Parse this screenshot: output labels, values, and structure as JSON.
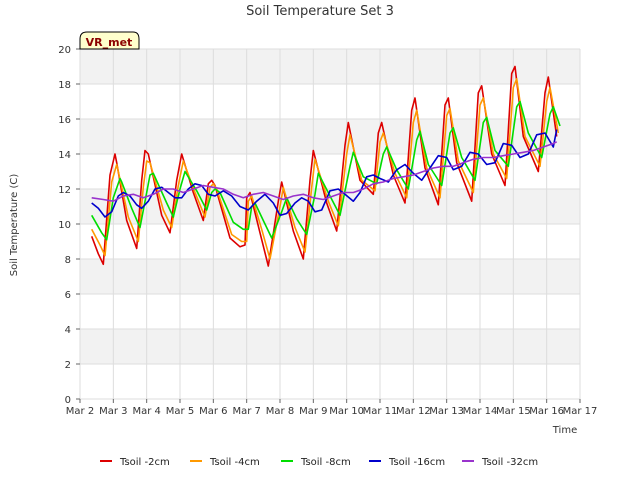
{
  "chart_data": {
    "type": "line",
    "title": "Soil Temperature Set 3",
    "xlabel": "Time",
    "ylabel": "Soil Temperature (C)",
    "badge": "VR_met",
    "xlim": [
      2,
      17
    ],
    "ylim": [
      0,
      20
    ],
    "x_unit": "day of March",
    "xticks": [
      2,
      3,
      4,
      5,
      6,
      7,
      8,
      9,
      10,
      11,
      12,
      13,
      14,
      15,
      16,
      17
    ],
    "xtick_labels": [
      "Mar 2",
      "Mar 3",
      "Mar 4",
      "Mar 5",
      "Mar 6",
      "Mar 7",
      "Mar 8",
      "Mar 9",
      "Mar 10",
      "Mar 11",
      "Mar 12",
      "Mar 13",
      "Mar 14",
      "Mar 15",
      "Mar 16",
      "Mar 17"
    ],
    "yticks": [
      0,
      2,
      4,
      6,
      8,
      10,
      12,
      14,
      16,
      18,
      20
    ],
    "ytick_labels": [
      "0",
      "2",
      "4",
      "6",
      "8",
      "10",
      "12",
      "14",
      "16",
      "18",
      "20"
    ],
    "grid": true,
    "legend_position": "bottom",
    "series": [
      {
        "name": "Tsoil -2cm",
        "color": "#dd0000",
        "x": [
          2.35,
          2.55,
          2.7,
          2.9,
          3.05,
          3.1,
          3.4,
          3.7,
          3.85,
          3.95,
          4.05,
          4.45,
          4.7,
          4.9,
          5.05,
          5.4,
          5.7,
          5.85,
          5.95,
          6.05,
          6.5,
          6.8,
          6.95,
          7.0,
          7.1,
          7.4,
          7.65,
          7.95,
          8.05,
          8.4,
          8.7,
          8.9,
          9.0,
          9.4,
          9.7,
          9.95,
          10.05,
          10.4,
          10.8,
          10.95,
          11.05,
          11.4,
          11.75,
          11.95,
          12.05,
          12.35,
          12.75,
          12.95,
          13.05,
          13.3,
          13.75,
          13.95,
          14.05,
          14.35,
          14.75,
          14.95,
          15.05,
          15.3,
          15.75,
          15.95,
          16.05,
          16.3
        ],
        "y": [
          9.3,
          8.3,
          7.7,
          12.8,
          14.0,
          13.5,
          10.2,
          8.6,
          12.5,
          14.2,
          14.0,
          10.5,
          9.5,
          12.5,
          14.0,
          11.8,
          10.2,
          12.3,
          12.5,
          12.2,
          9.2,
          8.7,
          8.8,
          11.5,
          11.8,
          9.5,
          7.6,
          11.3,
          12.4,
          9.6,
          8.0,
          12.5,
          14.2,
          11.2,
          9.6,
          14.5,
          15.8,
          12.5,
          11.7,
          15.2,
          15.8,
          12.8,
          11.2,
          16.5,
          17.2,
          13.2,
          11.1,
          16.8,
          17.2,
          13.5,
          11.3,
          17.5,
          17.9,
          14.0,
          12.2,
          18.6,
          19.0,
          15.0,
          13.0,
          17.5,
          18.4,
          15.0
        ]
      },
      {
        "name": "Tsoil -4cm",
        "color": "#ff9900",
        "x": [
          2.35,
          2.6,
          2.75,
          2.95,
          3.1,
          3.15,
          3.45,
          3.75,
          3.9,
          4.0,
          4.1,
          4.5,
          4.75,
          4.95,
          5.1,
          5.45,
          5.75,
          5.9,
          6.0,
          6.1,
          6.55,
          6.85,
          7.0,
          7.05,
          7.15,
          7.45,
          7.7,
          8.0,
          8.1,
          8.45,
          8.75,
          8.95,
          9.05,
          9.45,
          9.75,
          10.0,
          10.1,
          10.45,
          10.85,
          11.0,
          11.1,
          11.45,
          11.8,
          12.0,
          12.1,
          12.4,
          12.8,
          13.0,
          13.1,
          13.35,
          13.8,
          14.0,
          14.1,
          14.4,
          14.8,
          15.0,
          15.1,
          15.35,
          15.8,
          16.0,
          16.1,
          16.35
        ],
        "y": [
          9.7,
          8.8,
          8.2,
          12.4,
          13.4,
          13.0,
          10.4,
          9.0,
          12.1,
          13.6,
          13.5,
          10.8,
          9.8,
          12.2,
          13.6,
          11.8,
          10.4,
          12.1,
          12.3,
          12.0,
          9.4,
          9.0,
          9.0,
          11.3,
          11.6,
          9.7,
          8.0,
          11.0,
          12.1,
          9.8,
          8.4,
          12.1,
          13.7,
          11.3,
          9.9,
          14.0,
          15.1,
          12.5,
          11.9,
          14.7,
          15.2,
          12.9,
          11.5,
          15.8,
          16.5,
          13.2,
          11.5,
          16.2,
          16.6,
          13.6,
          11.8,
          16.8,
          17.2,
          14.0,
          12.6,
          17.8,
          18.3,
          15.0,
          13.3,
          17.0,
          17.8,
          15.2
        ]
      },
      {
        "name": "Tsoil -8cm",
        "color": "#00dd00",
        "x": [
          2.35,
          2.65,
          2.8,
          3.0,
          3.2,
          3.25,
          3.55,
          3.8,
          4.0,
          4.1,
          4.2,
          4.6,
          4.8,
          5.0,
          5.15,
          5.5,
          5.8,
          5.95,
          6.05,
          6.2,
          6.6,
          6.9,
          7.05,
          7.15,
          7.25,
          7.5,
          7.75,
          8.05,
          8.2,
          8.5,
          8.8,
          9.05,
          9.15,
          9.5,
          9.8,
          10.1,
          10.2,
          10.5,
          10.9,
          11.1,
          11.2,
          11.5,
          11.85,
          12.1,
          12.2,
          12.45,
          12.85,
          13.1,
          13.2,
          13.45,
          13.85,
          14.1,
          14.2,
          14.45,
          14.85,
          15.1,
          15.2,
          15.45,
          15.85,
          16.1,
          16.2,
          16.4
        ],
        "y": [
          10.5,
          9.5,
          9.1,
          11.5,
          12.6,
          12.4,
          10.9,
          9.8,
          11.8,
          12.8,
          12.9,
          11.2,
          10.4,
          12.0,
          13.0,
          11.9,
          10.8,
          11.8,
          12.0,
          11.8,
          10.1,
          9.7,
          9.7,
          11.0,
          11.2,
          10.2,
          9.2,
          10.7,
          11.5,
          10.3,
          9.4,
          11.7,
          12.9,
          11.6,
          10.5,
          13.3,
          14.1,
          12.7,
          12.3,
          14.0,
          14.4,
          13.1,
          12.0,
          14.8,
          15.3,
          13.4,
          12.2,
          15.2,
          15.5,
          13.8,
          12.5,
          15.8,
          16.1,
          14.2,
          13.3,
          16.7,
          17.0,
          15.2,
          13.8,
          16.3,
          16.7,
          15.6
        ]
      },
      {
        "name": "Tsoil -16cm",
        "color": "#0000cc",
        "x": [
          2.35,
          2.55,
          2.75,
          2.95,
          3.15,
          3.3,
          3.5,
          3.7,
          3.85,
          4.05,
          4.25,
          4.45,
          4.65,
          4.85,
          5.05,
          5.25,
          5.45,
          5.65,
          5.85,
          6.05,
          6.3,
          6.55,
          6.8,
          7.05,
          7.3,
          7.55,
          7.8,
          8.0,
          8.2,
          8.45,
          8.65,
          8.85,
          9.05,
          9.25,
          9.5,
          9.75,
          9.95,
          10.2,
          10.4,
          10.6,
          10.8,
          11.0,
          11.25,
          11.5,
          11.75,
          12.0,
          12.25,
          12.5,
          12.75,
          13.0,
          13.2,
          13.45,
          13.7,
          13.95,
          14.2,
          14.45,
          14.7,
          14.95,
          15.2,
          15.45,
          15.7,
          15.95,
          16.2,
          16.3
        ],
        "y": [
          11.2,
          10.9,
          10.4,
          10.7,
          11.6,
          11.8,
          11.6,
          11.1,
          10.9,
          11.3,
          12.0,
          12.1,
          11.8,
          11.5,
          11.5,
          12.0,
          12.3,
          12.2,
          11.7,
          11.6,
          11.9,
          11.6,
          11.0,
          10.8,
          11.3,
          11.7,
          11.2,
          10.5,
          10.6,
          11.2,
          11.5,
          11.3,
          10.7,
          10.8,
          11.9,
          12.0,
          11.7,
          11.3,
          11.8,
          12.7,
          12.8,
          12.6,
          12.4,
          13.1,
          13.4,
          12.9,
          12.5,
          13.2,
          13.9,
          13.8,
          13.1,
          13.3,
          14.1,
          14.0,
          13.4,
          13.5,
          14.6,
          14.5,
          13.8,
          14.0,
          15.1,
          15.2,
          14.4,
          15.4
        ]
      },
      {
        "name": "Tsoil -32cm",
        "color": "#9933cc",
        "x": [
          2.35,
          2.7,
          3.0,
          3.3,
          3.6,
          3.9,
          4.2,
          4.5,
          4.8,
          5.1,
          5.4,
          5.7,
          6.0,
          6.3,
          6.6,
          6.9,
          7.2,
          7.5,
          7.8,
          8.1,
          8.4,
          8.7,
          9.0,
          9.3,
          9.6,
          9.9,
          10.2,
          10.5,
          10.8,
          11.1,
          11.4,
          11.7,
          12.0,
          12.3,
          12.6,
          12.9,
          13.2,
          13.5,
          13.8,
          14.1,
          14.4,
          14.7,
          15.0,
          15.3,
          15.6,
          15.9,
          16.2,
          16.3
        ],
        "y": [
          11.5,
          11.4,
          11.3,
          11.6,
          11.7,
          11.5,
          11.7,
          12.0,
          12.0,
          11.8,
          12.0,
          12.2,
          12.1,
          12.0,
          11.7,
          11.5,
          11.7,
          11.8,
          11.6,
          11.4,
          11.6,
          11.7,
          11.5,
          11.4,
          11.6,
          11.8,
          11.8,
          12.0,
          12.3,
          12.4,
          12.6,
          12.7,
          12.8,
          13.0,
          13.2,
          13.3,
          13.3,
          13.5,
          13.7,
          13.8,
          13.8,
          13.9,
          14.0,
          14.1,
          14.2,
          14.4,
          14.6,
          14.7
        ]
      }
    ]
  }
}
